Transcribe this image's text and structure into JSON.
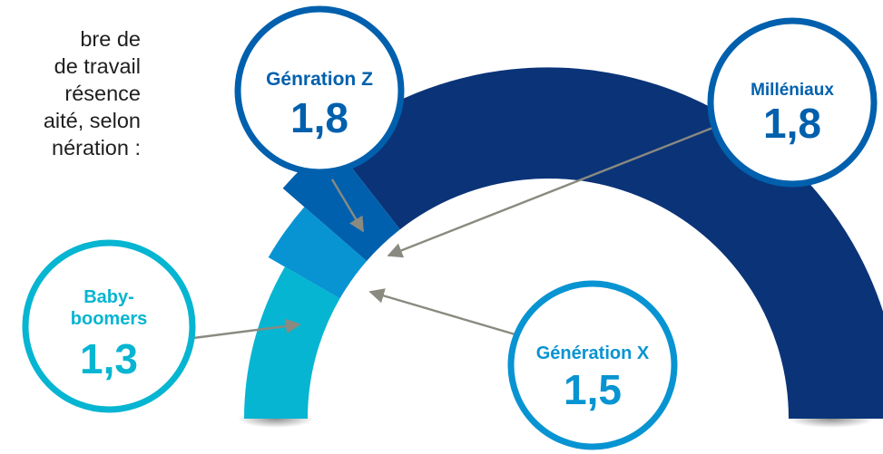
{
  "intro_lines": [
    "bre de",
    "de travail",
    "résence",
    "aité, selon",
    "nération :"
  ],
  "colors": {
    "gen_z": "#0060ad",
    "millenials": "#0b3478",
    "gen_x": "#0894d2",
    "boomers": "#06b5d1",
    "arrow": "#8a8a80"
  },
  "chart_data": {
    "type": "bar",
    "categories": [
      "Génration Z",
      "Milléniaux",
      "Génération X",
      "Baby-boomers"
    ],
    "values": [
      1.8,
      1.8,
      1.5,
      1.3
    ],
    "value_labels": [
      "1,8",
      "1,8",
      "1,5",
      "1,3"
    ],
    "boomers_label_lines": [
      "Baby-",
      "boomers"
    ]
  }
}
